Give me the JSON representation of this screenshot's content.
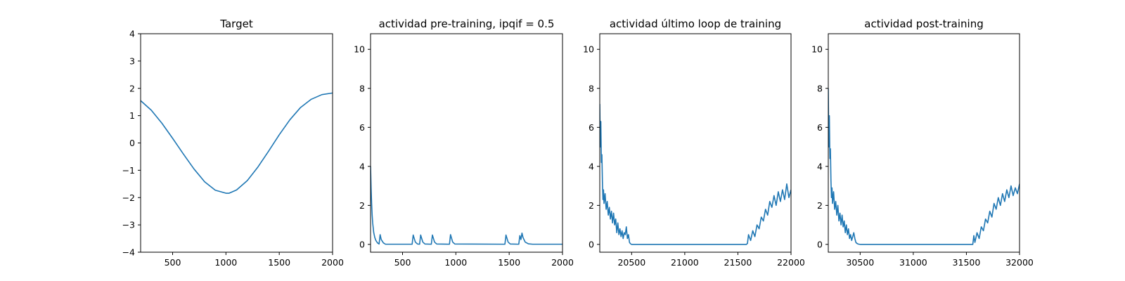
{
  "colors": {
    "series": "#1f77b4",
    "axes": "#000000",
    "background": "#ffffff"
  },
  "chart_data": [
    {
      "type": "line",
      "title": "Target",
      "xlim": [
        200,
        2000
      ],
      "ylim": [
        -4,
        4
      ],
      "xticks": [
        500,
        1000,
        1500,
        2000
      ],
      "xtick_labels": [
        "500",
        "1000",
        "1500",
        "2000"
      ],
      "yticks": [
        -4,
        -3,
        -2,
        -1,
        0,
        1,
        2,
        3,
        4
      ],
      "ytick_labels": [
        "−4",
        "−3",
        "−2",
        "−1",
        "0",
        "1",
        "2",
        "3",
        "4"
      ],
      "series": [
        {
          "x": [
            200,
            300,
            400,
            500,
            600,
            700,
            800,
            900,
            1000,
            1030,
            1100,
            1200,
            1300,
            1400,
            1500,
            1600,
            1700,
            1800,
            1900,
            2000
          ],
          "y": [
            1.55,
            1.2,
            0.72,
            0.17,
            -0.4,
            -0.95,
            -1.42,
            -1.73,
            -1.84,
            -1.84,
            -1.72,
            -1.38,
            -0.88,
            -0.3,
            0.3,
            0.85,
            1.3,
            1.6,
            1.77,
            1.83
          ]
        }
      ]
    },
    {
      "type": "line",
      "title": "actividad pre-training, ipqif = 0.5",
      "xlim": [
        200,
        2000
      ],
      "ylim": [
        -0.4,
        10.8
      ],
      "xticks": [
        500,
        1000,
        1500,
        2000
      ],
      "xtick_labels": [
        "500",
        "1000",
        "1500",
        "2000"
      ],
      "yticks": [
        0,
        2,
        4,
        6,
        8,
        10
      ],
      "ytick_labels": [
        "0",
        "2",
        "4",
        "6",
        "8",
        "10"
      ],
      "series": [
        {
          "x": [
            200,
            205,
            210,
            215,
            220,
            230,
            240,
            250,
            265,
            280,
            290,
            300,
            320,
            340,
            590,
            600,
            620,
            640,
            660,
            670,
            690,
            710,
            770,
            780,
            800,
            820,
            940,
            950,
            970,
            990,
            1460,
            1470,
            1490,
            1510,
            1590,
            1600,
            1610,
            1620,
            1630,
            1650,
            1680,
            1720,
            2000
          ],
          "y": [
            4.0,
            2.9,
            2.1,
            1.5,
            1.1,
            0.6,
            0.35,
            0.2,
            0.08,
            0.02,
            0.5,
            0.25,
            0.08,
            0.01,
            0.01,
            0.48,
            0.12,
            0.02,
            0.01,
            0.48,
            0.12,
            0.02,
            0.01,
            0.48,
            0.12,
            0.02,
            0.01,
            0.5,
            0.12,
            0.02,
            0.01,
            0.48,
            0.12,
            0.02,
            0.01,
            0.45,
            0.25,
            0.58,
            0.35,
            0.12,
            0.03,
            0.01,
            0.01
          ]
        }
      ]
    },
    {
      "type": "line",
      "title": "actividad último loop de training",
      "xlim": [
        20200,
        22000
      ],
      "ylim": [
        -0.4,
        10.8
      ],
      "xticks": [
        20500,
        21000,
        21500,
        22000
      ],
      "xtick_labels": [
        "20500",
        "21000",
        "21500",
        "22000"
      ],
      "yticks": [
        0,
        2,
        4,
        6,
        8,
        10
      ],
      "ytick_labels": [
        "0",
        "2",
        "4",
        "6",
        "8",
        "10"
      ],
      "series": [
        {
          "x": [
            20200,
            20205,
            20210,
            20215,
            20220,
            20225,
            20230,
            20235,
            20240,
            20250,
            20260,
            20270,
            20280,
            20290,
            20300,
            20310,
            20320,
            20330,
            20340,
            20350,
            20360,
            20370,
            20380,
            20390,
            20400,
            20410,
            20420,
            20430,
            20440,
            20450,
            20460,
            20470,
            20480,
            20490,
            20500,
            20520,
            20560,
            21580,
            21590,
            21600,
            21620,
            21640,
            21660,
            21680,
            21700,
            21720,
            21740,
            21760,
            21780,
            21800,
            21820,
            21840,
            21860,
            21880,
            21900,
            21920,
            21940,
            21960,
            21980,
            22000
          ],
          "y": [
            7.2,
            5.0,
            6.3,
            4.2,
            4.6,
            3.2,
            2.3,
            2.8,
            2.1,
            2.6,
            1.8,
            2.2,
            1.5,
            1.9,
            1.3,
            1.7,
            1.1,
            1.6,
            1.0,
            1.3,
            0.6,
            1.1,
            0.5,
            0.8,
            0.4,
            0.7,
            0.3,
            0.6,
            0.5,
            0.9,
            0.3,
            0.5,
            0.1,
            0.03,
            0.0,
            0.0,
            0.0,
            0.0,
            0.05,
            0.5,
            0.2,
            0.7,
            0.4,
            1.0,
            0.8,
            1.4,
            1.2,
            1.8,
            1.5,
            2.2,
            1.9,
            2.5,
            2.0,
            2.7,
            2.2,
            2.8,
            2.3,
            3.1,
            2.4,
            2.8
          ]
        }
      ]
    },
    {
      "type": "line",
      "title": "actividad post-training",
      "xlim": [
        30200,
        32000
      ],
      "ylim": [
        -0.4,
        10.8
      ],
      "xticks": [
        30500,
        31000,
        31500,
        32000
      ],
      "xtick_labels": [
        "30500",
        "31000",
        "31500",
        "32000"
      ],
      "yticks": [
        0,
        2,
        4,
        6,
        8,
        10
      ],
      "ytick_labels": [
        "0",
        "2",
        "4",
        "6",
        "8",
        "10"
      ],
      "series": [
        {
          "x": [
            30200,
            30205,
            30210,
            30215,
            30220,
            30225,
            30230,
            30235,
            30240,
            30250,
            30260,
            30270,
            30280,
            30290,
            30300,
            30310,
            30320,
            30330,
            30340,
            30350,
            30360,
            30370,
            30380,
            30390,
            30400,
            30410,
            30420,
            30430,
            30440,
            30450,
            30460,
            30470,
            30480,
            30490,
            30500,
            30520,
            30560,
            31560,
            31570,
            31580,
            31600,
            31620,
            31640,
            31660,
            31680,
            31700,
            31720,
            31740,
            31760,
            31780,
            31800,
            31820,
            31840,
            31860,
            31880,
            31900,
            31920,
            31940,
            31960,
            31980,
            32000
          ],
          "y": [
            8.0,
            5.0,
            6.6,
            4.4,
            4.9,
            3.3,
            2.4,
            2.9,
            2.1,
            2.7,
            1.8,
            2.2,
            1.5,
            2.0,
            1.2,
            1.6,
            1.0,
            1.5,
            0.9,
            1.2,
            0.6,
            1.0,
            0.5,
            0.8,
            0.3,
            0.5,
            0.2,
            0.4,
            0.6,
            0.3,
            0.1,
            0.05,
            0.02,
            0.01,
            0.0,
            0.0,
            0.0,
            0.0,
            0.45,
            0.1,
            0.6,
            0.3,
            0.9,
            0.7,
            1.3,
            1.1,
            1.7,
            1.4,
            2.1,
            1.8,
            2.4,
            2.0,
            2.6,
            2.2,
            2.8,
            2.4,
            3.0,
            2.5,
            2.9,
            2.6,
            3.1
          ]
        }
      ]
    }
  ]
}
